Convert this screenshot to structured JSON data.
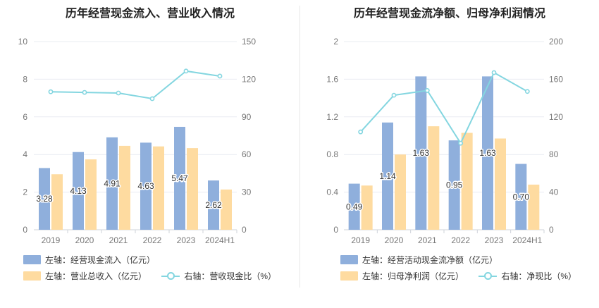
{
  "colors": {
    "bar1": "#8fafdc",
    "bar2": "#fedba0",
    "line": "#84d6e0",
    "grid": "#e9ecf2",
    "axis_text": "#777777"
  },
  "chart_data": [
    {
      "type": "bar",
      "title": "历年经营现金流入、营业收入情况",
      "categories": [
        "2019",
        "2020",
        "2021",
        "2022",
        "2023",
        "2024H1"
      ],
      "left_axis": {
        "ylim": [
          0,
          10
        ],
        "ticks": [
          "0",
          "2",
          "4",
          "6",
          "8",
          "10"
        ]
      },
      "right_axis": {
        "ylim": [
          0,
          150
        ],
        "ticks": [
          "0",
          "30",
          "60",
          "90",
          "120",
          "150"
        ]
      },
      "series": [
        {
          "name": "左轴：经营现金流入（亿元）",
          "axis": "left",
          "kind": "bar",
          "values": [
            3.28,
            4.13,
            4.91,
            4.63,
            5.47,
            2.62
          ],
          "labels": [
            "3.28",
            "4.13",
            "4.91",
            "4.63",
            "5.47",
            "2.62"
          ]
        },
        {
          "name": "左轴：营业总收入（亿元）",
          "axis": "left",
          "kind": "bar",
          "values": [
            2.95,
            3.74,
            4.46,
            4.43,
            4.34,
            2.14
          ]
        },
        {
          "name": "右轴：营收现金比（%）",
          "axis": "right",
          "kind": "line",
          "values": [
            110,
            109.5,
            109,
            104.5,
            126.5,
            122.5
          ]
        }
      ]
    },
    {
      "type": "bar",
      "title": "历年经营现金流净额、归母净利润情况",
      "categories": [
        "2019",
        "2020",
        "2021",
        "2022",
        "2023",
        "2024H1"
      ],
      "left_axis": {
        "ylim": [
          0,
          2
        ],
        "ticks": [
          "0",
          "0.4",
          "0.8",
          "1.2",
          "1.6",
          "2"
        ]
      },
      "right_axis": {
        "ylim": [
          0,
          200
        ],
        "ticks": [
          "0",
          "40",
          "80",
          "120",
          "160",
          "200"
        ]
      },
      "series": [
        {
          "name": "左轴：经营活动现金流净额（亿元）",
          "axis": "left",
          "kind": "bar",
          "values": [
            0.49,
            1.14,
            1.63,
            0.95,
            1.63,
            0.7
          ],
          "labels": [
            "0.49",
            "1.14",
            "1.63",
            "0.95",
            "1.63",
            "0.70"
          ]
        },
        {
          "name": "左轴：归母净利润（亿元）",
          "axis": "left",
          "kind": "bar",
          "values": [
            0.47,
            0.8,
            1.1,
            1.03,
            0.97,
            0.48
          ]
        },
        {
          "name": "右轴：净现比（%）",
          "axis": "right",
          "kind": "line",
          "values": [
            104,
            143,
            148,
            92,
            167,
            147
          ]
        }
      ]
    }
  ]
}
